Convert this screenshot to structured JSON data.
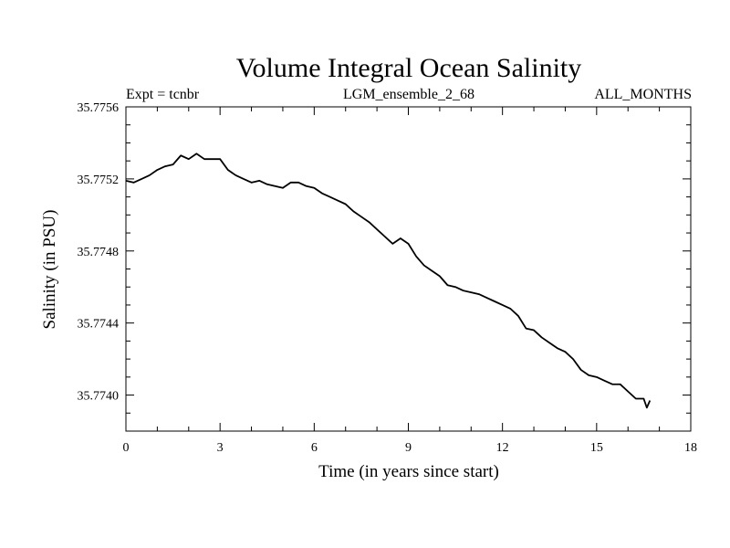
{
  "chart_data": {
    "type": "line",
    "title": "Volume Integral Ocean Salinity",
    "subtitle_left": "Expt = tcnbr",
    "subtitle_center": "LGM_ensemble_2_68",
    "subtitle_right": "ALL_MONTHS",
    "xlabel": "Time (in years since start)",
    "ylabel": "Salinity (in PSU)",
    "xlim": [
      0,
      18
    ],
    "ylim": [
      35.7738,
      35.7756
    ],
    "xticks": [
      0,
      3,
      6,
      9,
      12,
      15,
      18
    ],
    "xtick_labels": [
      "0",
      "3",
      "6",
      "9",
      "12",
      "15",
      "18"
    ],
    "yticks": [
      35.774,
      35.7744,
      35.7748,
      35.7752,
      35.7756
    ],
    "ytick_labels": [
      "35.7740",
      "35.7744",
      "35.7748",
      "35.7752",
      "35.7756"
    ],
    "series": [
      {
        "name": "salinity",
        "color": "#000000",
        "x": [
          0.0,
          0.25,
          0.5,
          0.75,
          1.0,
          1.25,
          1.5,
          1.75,
          2.0,
          2.25,
          2.5,
          2.75,
          3.0,
          3.25,
          3.5,
          3.75,
          4.0,
          4.25,
          4.5,
          4.75,
          5.0,
          5.25,
          5.5,
          5.75,
          6.0,
          6.25,
          6.5,
          6.75,
          7.0,
          7.25,
          7.5,
          7.75,
          8.0,
          8.25,
          8.5,
          8.75,
          9.0,
          9.25,
          9.5,
          9.75,
          10.0,
          10.25,
          10.5,
          10.75,
          11.0,
          11.25,
          11.5,
          11.75,
          12.0,
          12.25,
          12.5,
          12.75,
          13.0,
          13.25,
          13.5,
          13.75,
          14.0,
          14.25,
          14.5,
          14.75,
          15.0,
          15.25,
          15.5,
          15.75,
          16.0,
          16.25,
          16.5,
          16.6,
          16.7
        ],
        "values": [
          35.77519,
          35.77518,
          35.7752,
          35.77522,
          35.77525,
          35.77527,
          35.77528,
          35.77533,
          35.77531,
          35.77534,
          35.77531,
          35.77531,
          35.77531,
          35.77525,
          35.77522,
          35.7752,
          35.77518,
          35.77519,
          35.77517,
          35.77516,
          35.77515,
          35.77518,
          35.77518,
          35.77516,
          35.77515,
          35.77512,
          35.7751,
          35.77508,
          35.77506,
          35.77502,
          35.77499,
          35.77496,
          35.77492,
          35.77488,
          35.77484,
          35.77487,
          35.77484,
          35.77477,
          35.77472,
          35.77469,
          35.77466,
          35.77461,
          35.7746,
          35.77458,
          35.77457,
          35.77456,
          35.77454,
          35.77452,
          35.7745,
          35.77448,
          35.77444,
          35.77437,
          35.77436,
          35.77432,
          35.77429,
          35.77426,
          35.77424,
          35.7742,
          35.77414,
          35.77411,
          35.7741,
          35.77408,
          35.77406,
          35.77406,
          35.77402,
          35.77398,
          35.77398,
          35.77393,
          35.77397
        ]
      }
    ]
  }
}
